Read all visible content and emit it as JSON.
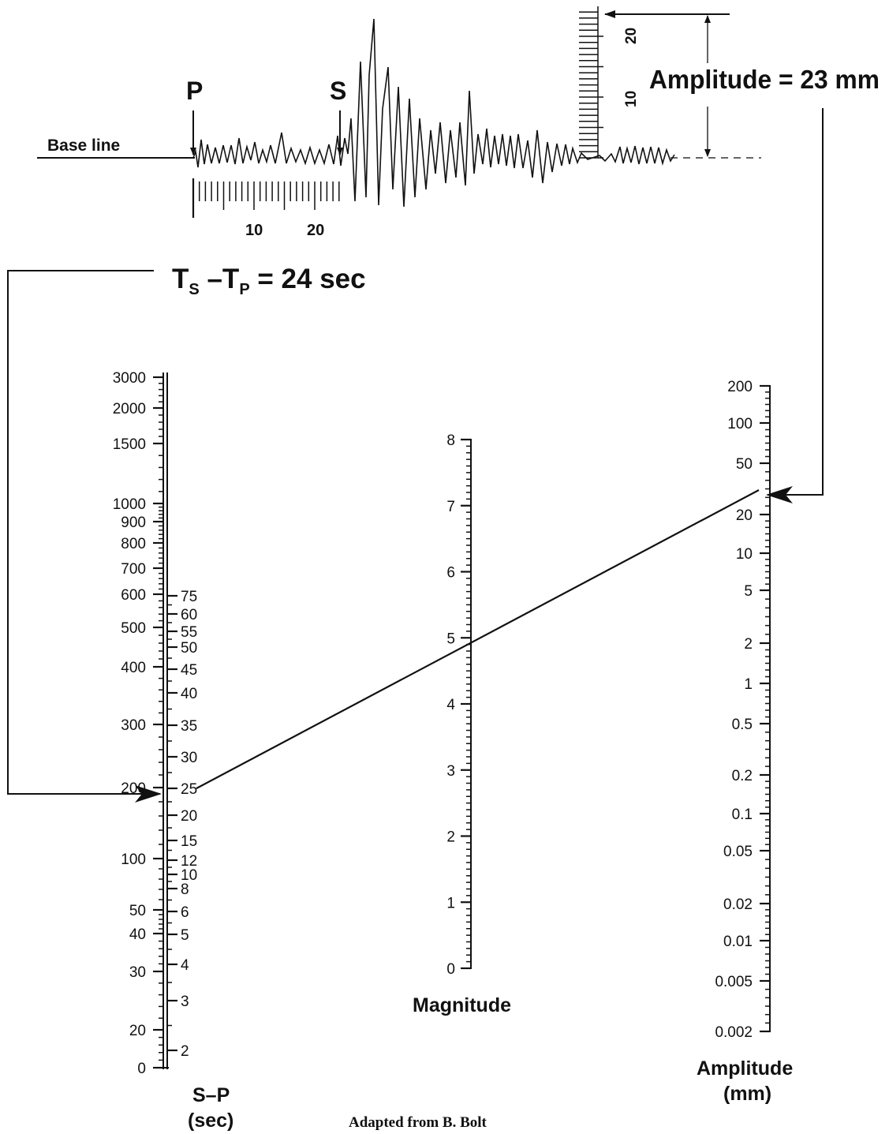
{
  "seismogram": {
    "p_label": "P",
    "s_label": "S",
    "baseline_label": "Base line",
    "time_ticks": [
      "10",
      "20"
    ],
    "amp_ticks": [
      "10",
      "20"
    ],
    "amplitude_text": "Amplitude = 23 mm",
    "ts_tp": {
      "t1": "T",
      "s1": "S",
      "mid": " –T",
      "s2": "P",
      "tail": " = 24 sec"
    }
  },
  "scales": {
    "distance": {
      "labels": [
        "3000",
        "2000",
        "1500",
        "1000",
        "900",
        "800",
        "700",
        "600",
        "500",
        "400",
        "300",
        "200",
        "100",
        "50",
        "40",
        "30",
        "20",
        "0"
      ]
    },
    "sp": {
      "labels": [
        "75",
        "60",
        "55",
        "50",
        "45",
        "40",
        "35",
        "30",
        "25",
        "20",
        "15",
        "12",
        "10",
        "8",
        "6",
        "5",
        "4",
        "3",
        "2"
      ],
      "title": [
        "S–P",
        "(sec)"
      ]
    },
    "magnitude": {
      "labels": [
        "8",
        "7",
        "6",
        "5",
        "4",
        "3",
        "2",
        "1",
        "0"
      ],
      "title": "Magnitude"
    },
    "amplitude": {
      "labels": [
        "200",
        "100",
        "50",
        "20",
        "10",
        "5",
        "2",
        "1",
        "0.5",
        "0.2",
        "0.1",
        "0.05",
        "0.02",
        "0.01",
        "0.005",
        "0.002"
      ],
      "title": [
        "Amplitude",
        "(mm)"
      ]
    }
  },
  "example_reading": {
    "sp_sec": 24,
    "amplitude_mm": 23,
    "magnitude": 5
  },
  "credit": "Adapted from B. Bolt"
}
